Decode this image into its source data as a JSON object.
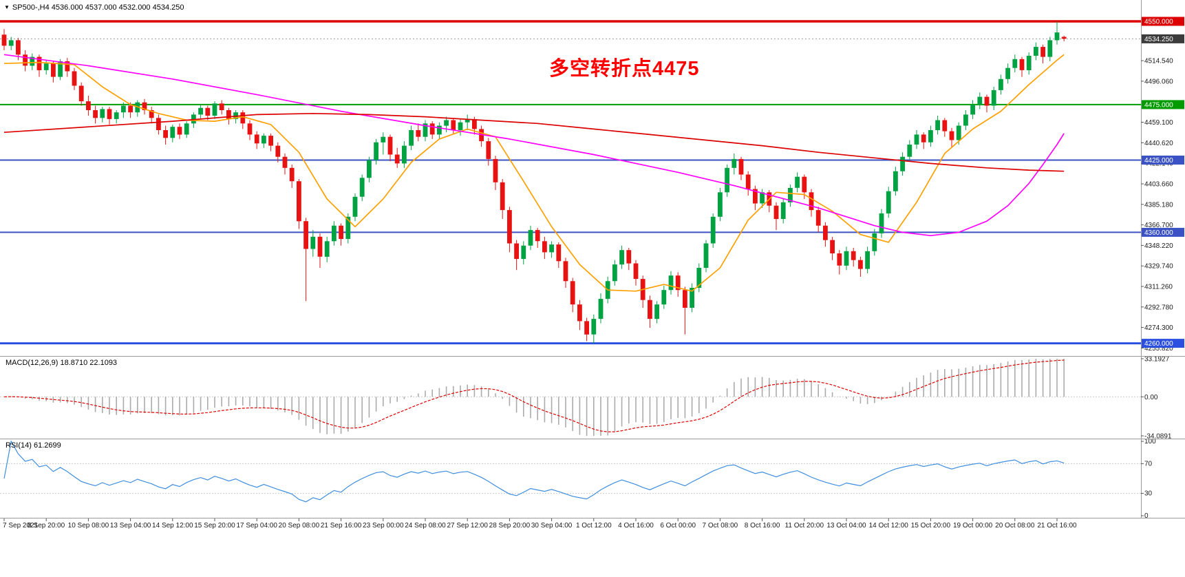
{
  "header": {
    "dropdown_arrow": "▼",
    "symbol_period": "SP500-,H4",
    "ohlc": "4536.000 4537.000 4532.000 4534.250"
  },
  "annotation": {
    "text": "多空转折点4475",
    "color": "#FF0000"
  },
  "macd_panel": {
    "label": "MACD(12,26,9) 18.8710 22.1093",
    "current_macd": "18.8710",
    "current_signal": "22.1093",
    "axis": [
      "33.1927",
      "0.00",
      "-34.0891"
    ]
  },
  "rsi_panel": {
    "label": "RSI(14) 61.2699",
    "current": "61.2699",
    "axis": [
      "100",
      "70",
      "30",
      "0"
    ],
    "levels": [
      70,
      30
    ]
  },
  "colors": {
    "bull": "#00A241",
    "bear": "#E81212",
    "ma_red": "#DD0000",
    "ma_magenta": "#FF00FF",
    "ma_orange": "#FFA000",
    "macd_hist": "#ABABAB",
    "macd_signal": "#DD0000",
    "rsi_line": "#3E8EDE",
    "current_label_bg": "#3C3C3C",
    "axis_text": "#1a1a1a",
    "separator": "#9a9a9a"
  },
  "chart_data": {
    "type": "candlestick",
    "symbol": "SP500-",
    "timeframe": "H4",
    "price_axis_range": {
      "top": 4569.2,
      "bottom": 4248.6
    },
    "price_ticks": [
      4514.54,
      4496.06,
      4459.1,
      4440.62,
      4422.14,
      4403.66,
      4385.18,
      4366.7,
      4348.22,
      4329.74,
      4311.26,
      4292.78,
      4274.3,
      4255.82
    ],
    "hlines": [
      {
        "price": 4550.0,
        "label": "4550.000",
        "color": "#DD0000",
        "width": 3.5
      },
      {
        "price": 4475.0,
        "label": "4475.000",
        "color": "#009B00",
        "width": 2
      },
      {
        "price": 4425.0,
        "label": "4425.000",
        "color": "#3A52C4",
        "width": 2
      },
      {
        "price": 4360.0,
        "label": "4360.000",
        "color": "#3A52C4",
        "width": 2
      },
      {
        "price": 4260.0,
        "label": "4260.000",
        "color": "#2B50E0",
        "width": 3
      }
    ],
    "current_price": {
      "value": 4534.25,
      "label": "4534.250"
    },
    "macd_params": [
      12,
      26,
      9
    ],
    "rsi_period": 14,
    "time_labels": [
      "7 Sep 2021",
      "8 Sep 20:00",
      "10 Sep 08:00",
      "13 Sep 04:00",
      "14 Sep 12:00",
      "15 Sep 20:00",
      "17 Sep 04:00",
      "20 Sep 08:00",
      "21 Sep 16:00",
      "23 Sep 00:00",
      "24 Sep 08:00",
      "27 Sep 12:00",
      "28 Sep 20:00",
      "30 Sep 04:00",
      "1 Oct 12:00",
      "4 Oct 16:00",
      "6 Oct 00:00",
      "7 Oct 08:00",
      "8 Oct 16:00",
      "11 Oct 20:00",
      "13 Oct 04:00",
      "14 Oct 12:00",
      "15 Oct 20:00",
      "19 Oct 00:00",
      "20 Oct 08:00",
      "21 Oct 16:00"
    ],
    "candles": [
      [
        4538,
        4543,
        4524,
        4528
      ],
      [
        4528,
        4536,
        4524,
        4533
      ],
      [
        4533,
        4535,
        4515,
        4520
      ],
      [
        4520,
        4524,
        4505,
        4510
      ],
      [
        4510,
        4521,
        4506,
        4518
      ],
      [
        4518,
        4520,
        4500,
        4506
      ],
      [
        4506,
        4515,
        4502,
        4512
      ],
      [
        4512,
        4514,
        4495,
        4500
      ],
      [
        4500,
        4516,
        4497,
        4514
      ],
      [
        4514,
        4517,
        4500,
        4505
      ],
      [
        4505,
        4508,
        4488,
        4492
      ],
      [
        4492,
        4495,
        4474,
        4478
      ],
      [
        4478,
        4483,
        4465,
        4470
      ],
      [
        4470,
        4474,
        4458,
        4463
      ],
      [
        4463,
        4473,
        4459,
        4471
      ],
      [
        4471,
        4473,
        4457,
        4462
      ],
      [
        4462,
        4470,
        4458,
        4468
      ],
      [
        4468,
        4477,
        4463,
        4474
      ],
      [
        4474,
        4477,
        4463,
        4468
      ],
      [
        4468,
        4479,
        4464,
        4477
      ],
      [
        4477,
        4480,
        4466,
        4470
      ],
      [
        4470,
        4473,
        4458,
        4463
      ],
      [
        4463,
        4466,
        4448,
        4452
      ],
      [
        4452,
        4456,
        4439,
        4445
      ],
      [
        4445,
        4457,
        4441,
        4455
      ],
      [
        4455,
        4458,
        4444,
        4448
      ],
      [
        4448,
        4460,
        4445,
        4458
      ],
      [
        4458,
        4468,
        4454,
        4466
      ],
      [
        4466,
        4475,
        4462,
        4472
      ],
      [
        4472,
        4474,
        4461,
        4465
      ],
      [
        4465,
        4478,
        4462,
        4476
      ],
      [
        4476,
        4479,
        4466,
        4470
      ],
      [
        4470,
        4472,
        4457,
        4462
      ],
      [
        4462,
        4470,
        4458,
        4468
      ],
      [
        4468,
        4470,
        4453,
        4458
      ],
      [
        4458,
        4461,
        4443,
        4448
      ],
      [
        4448,
        4451,
        4435,
        4440
      ],
      [
        4440,
        4449,
        4436,
        4447
      ],
      [
        4447,
        4449,
        4433,
        4438
      ],
      [
        4438,
        4441,
        4423,
        4428
      ],
      [
        4428,
        4431,
        4412,
        4418
      ],
      [
        4418,
        4421,
        4400,
        4406
      ],
      [
        4406,
        4408,
        4363,
        4370
      ],
      [
        4370,
        4373,
        4298,
        4345
      ],
      [
        4345,
        4362,
        4338,
        4356
      ],
      [
        4356,
        4359,
        4328,
        4338
      ],
      [
        4338,
        4356,
        4333,
        4352
      ],
      [
        4352,
        4370,
        4348,
        4366
      ],
      [
        4366,
        4368,
        4348,
        4354
      ],
      [
        4354,
        4377,
        4350,
        4374
      ],
      [
        4374,
        4395,
        4370,
        4392
      ],
      [
        4392,
        4412,
        4388,
        4409
      ],
      [
        4409,
        4428,
        4405,
        4425
      ],
      [
        4425,
        4444,
        4421,
        4441
      ],
      [
        4441,
        4450,
        4430,
        4446
      ],
      [
        4446,
        4448,
        4424,
        4430
      ],
      [
        4430,
        4436,
        4418,
        4422
      ],
      [
        4422,
        4442,
        4418,
        4438
      ],
      [
        4438,
        4456,
        4434,
        4452
      ],
      [
        4452,
        4458,
        4442,
        4446
      ],
      [
        4446,
        4461,
        4442,
        4458
      ],
      [
        4458,
        4460,
        4444,
        4448
      ],
      [
        4448,
        4459,
        4444,
        4456
      ],
      [
        4456,
        4464,
        4450,
        4461
      ],
      [
        4461,
        4463,
        4448,
        4452
      ],
      [
        4452,
        4462,
        4447,
        4459
      ],
      [
        4459,
        4466,
        4452,
        4462
      ],
      [
        4462,
        4464,
        4448,
        4453
      ],
      [
        4453,
        4456,
        4437,
        4442
      ],
      [
        4442,
        4445,
        4420,
        4426
      ],
      [
        4426,
        4429,
        4398,
        4405
      ],
      [
        4405,
        4408,
        4372,
        4380
      ],
      [
        4380,
        4383,
        4342,
        4350
      ],
      [
        4350,
        4353,
        4326,
        4336
      ],
      [
        4336,
        4352,
        4331,
        4348
      ],
      [
        4348,
        4366,
        4344,
        4362
      ],
      [
        4362,
        4364,
        4346,
        4352
      ],
      [
        4352,
        4356,
        4336,
        4342
      ],
      [
        4342,
        4352,
        4337,
        4349
      ],
      [
        4349,
        4351,
        4328,
        4334
      ],
      [
        4334,
        4337,
        4310,
        4316
      ],
      [
        4316,
        4319,
        4288,
        4295
      ],
      [
        4295,
        4299,
        4272,
        4280
      ],
      [
        4280,
        4283,
        4262,
        4268
      ],
      [
        4268,
        4286,
        4260,
        4282
      ],
      [
        4282,
        4305,
        4278,
        4300
      ],
      [
        4300,
        4320,
        4296,
        4316
      ],
      [
        4316,
        4335,
        4312,
        4331
      ],
      [
        4331,
        4348,
        4327,
        4344
      ],
      [
        4344,
        4346,
        4326,
        4332
      ],
      [
        4332,
        4335,
        4312,
        4318
      ],
      [
        4318,
        4321,
        4292,
        4299
      ],
      [
        4299,
        4303,
        4274,
        4282
      ],
      [
        4282,
        4298,
        4278,
        4295
      ],
      [
        4295,
        4312,
        4291,
        4308
      ],
      [
        4308,
        4325,
        4304,
        4321
      ],
      [
        4321,
        4324,
        4302,
        4308
      ],
      [
        4308,
        4311,
        4268,
        4292
      ],
      [
        4292,
        4314,
        4288,
        4310
      ],
      [
        4310,
        4332,
        4306,
        4328
      ],
      [
        4328,
        4353,
        4324,
        4350
      ],
      [
        4350,
        4377,
        4346,
        4374
      ],
      [
        4374,
        4400,
        4370,
        4396
      ],
      [
        4396,
        4421,
        4392,
        4418
      ],
      [
        4418,
        4431,
        4412,
        4426
      ],
      [
        4426,
        4428,
        4407,
        4412
      ],
      [
        4412,
        4415,
        4393,
        4399
      ],
      [
        4399,
        4402,
        4380,
        4386
      ],
      [
        4386,
        4399,
        4382,
        4396
      ],
      [
        4396,
        4398,
        4378,
        4384
      ],
      [
        4384,
        4387,
        4362,
        4372
      ],
      [
        4372,
        4390,
        4368,
        4387
      ],
      [
        4387,
        4403,
        4383,
        4400
      ],
      [
        4400,
        4414,
        4396,
        4410
      ],
      [
        4410,
        4412,
        4390,
        4396
      ],
      [
        4396,
        4399,
        4374,
        4380
      ],
      [
        4380,
        4383,
        4360,
        4366
      ],
      [
        4366,
        4369,
        4347,
        4353
      ],
      [
        4353,
        4356,
        4335,
        4341
      ],
      [
        4341,
        4344,
        4322,
        4330
      ],
      [
        4330,
        4347,
        4326,
        4343
      ],
      [
        4343,
        4346,
        4329,
        4335
      ],
      [
        4335,
        4338,
        4320,
        4327
      ],
      [
        4327,
        4347,
        4323,
        4343
      ],
      [
        4343,
        4363,
        4339,
        4359
      ],
      [
        4359,
        4381,
        4355,
        4377
      ],
      [
        4377,
        4401,
        4373,
        4397
      ],
      [
        4397,
        4419,
        4393,
        4415
      ],
      [
        4415,
        4432,
        4411,
        4428
      ],
      [
        4428,
        4443,
        4424,
        4439
      ],
      [
        4439,
        4452,
        4435,
        4448
      ],
      [
        4448,
        4450,
        4435,
        4441
      ],
      [
        4441,
        4456,
        4437,
        4452
      ],
      [
        4452,
        4465,
        4448,
        4461
      ],
      [
        4461,
        4463,
        4446,
        4451
      ],
      [
        4451,
        4454,
        4436,
        4443
      ],
      [
        4443,
        4459,
        4439,
        4456
      ],
      [
        4456,
        4470,
        4452,
        4466
      ],
      [
        4466,
        4479,
        4462,
        4475
      ],
      [
        4475,
        4486,
        4471,
        4482
      ],
      [
        4482,
        4484,
        4468,
        4474
      ],
      [
        4474,
        4491,
        4470,
        4488
      ],
      [
        4488,
        4502,
        4484,
        4498
      ],
      [
        4498,
        4512,
        4494,
        4508
      ],
      [
        4508,
        4520,
        4504,
        4516
      ],
      [
        4516,
        4518,
        4500,
        4506
      ],
      [
        4506,
        4522,
        4502,
        4519
      ],
      [
        4519,
        4531,
        4515,
        4527
      ],
      [
        4527,
        4529,
        4512,
        4518
      ],
      [
        4518,
        4536,
        4514,
        4533
      ],
      [
        4533,
        4550,
        4529,
        4540
      ],
      [
        4536,
        4537,
        4532,
        4534.25
      ]
    ],
    "ma_red": [
      [
        0,
        4450
      ],
      [
        12,
        4455
      ],
      [
        24,
        4460
      ],
      [
        36,
        4466
      ],
      [
        44,
        4467
      ],
      [
        52,
        4466
      ],
      [
        60,
        4464
      ],
      [
        68,
        4461
      ],
      [
        76,
        4458
      ],
      [
        84,
        4453
      ],
      [
        92,
        4448
      ],
      [
        100,
        4443
      ],
      [
        108,
        4438
      ],
      [
        116,
        4432
      ],
      [
        124,
        4427
      ],
      [
        132,
        4422
      ],
      [
        140,
        4418
      ],
      [
        146,
        4416
      ],
      [
        151,
        4415
      ]
    ],
    "ma_magenta": [
      [
        0,
        4520
      ],
      [
        12,
        4510
      ],
      [
        24,
        4498
      ],
      [
        36,
        4484
      ],
      [
        48,
        4469
      ],
      [
        60,
        4456
      ],
      [
        72,
        4444
      ],
      [
        84,
        4430
      ],
      [
        96,
        4414
      ],
      [
        104,
        4402
      ],
      [
        110,
        4392
      ],
      [
        116,
        4382
      ],
      [
        120,
        4374
      ],
      [
        124,
        4366
      ],
      [
        128,
        4360
      ],
      [
        132,
        4357
      ],
      [
        136,
        4360
      ],
      [
        140,
        4370
      ],
      [
        143,
        4384
      ],
      [
        146,
        4404
      ],
      [
        148,
        4421
      ],
      [
        150,
        4439
      ],
      [
        151,
        4449
      ]
    ],
    "ma_orange": [
      [
        0,
        4512
      ],
      [
        5,
        4513
      ],
      [
        10,
        4511
      ],
      [
        14,
        4491
      ],
      [
        18,
        4475
      ],
      [
        22,
        4467
      ],
      [
        26,
        4461
      ],
      [
        30,
        4460
      ],
      [
        34,
        4464
      ],
      [
        38,
        4457
      ],
      [
        42,
        4432
      ],
      [
        46,
        4390
      ],
      [
        50,
        4365
      ],
      [
        54,
        4390
      ],
      [
        58,
        4423
      ],
      [
        62,
        4444
      ],
      [
        66,
        4453
      ],
      [
        70,
        4446
      ],
      [
        74,
        4406
      ],
      [
        78,
        4365
      ],
      [
        82,
        4331
      ],
      [
        86,
        4308
      ],
      [
        90,
        4307
      ],
      [
        94,
        4313
      ],
      [
        98,
        4307
      ],
      [
        102,
        4328
      ],
      [
        106,
        4371
      ],
      [
        110,
        4396
      ],
      [
        114,
        4394
      ],
      [
        118,
        4379
      ],
      [
        122,
        4358
      ],
      [
        126,
        4351
      ],
      [
        130,
        4387
      ],
      [
        134,
        4431
      ],
      [
        138,
        4453
      ],
      [
        142,
        4469
      ],
      [
        146,
        4493
      ],
      [
        150,
        4515
      ],
      [
        151,
        4520
      ]
    ]
  }
}
